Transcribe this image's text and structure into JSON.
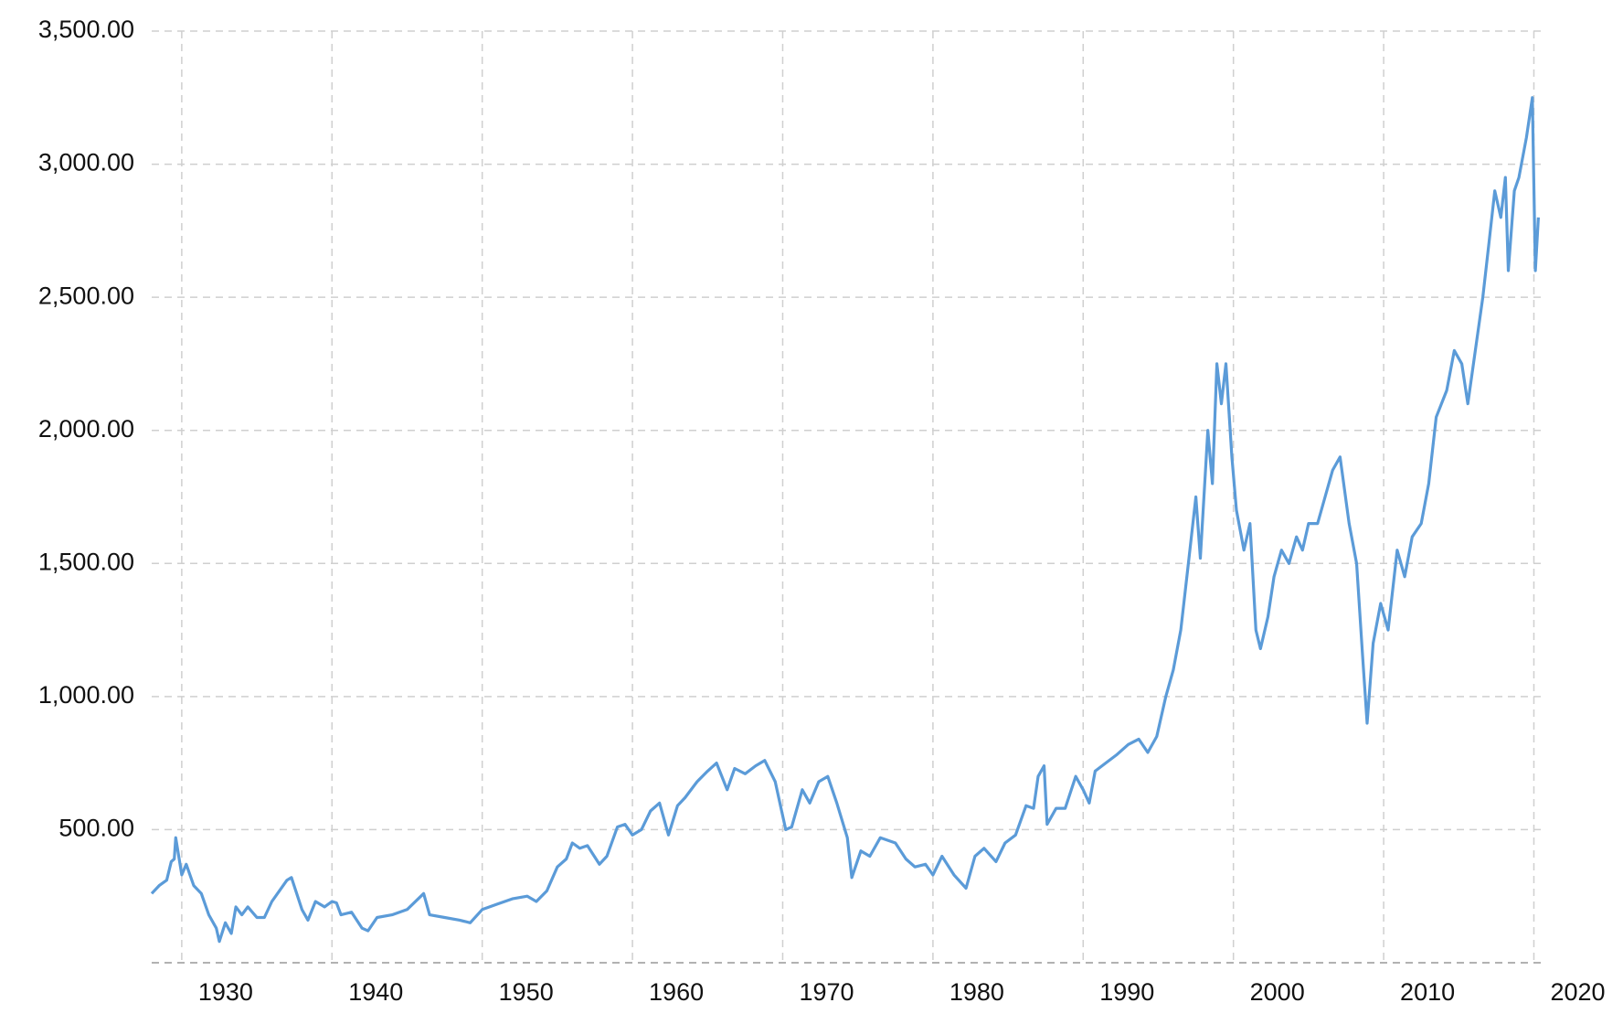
{
  "chart_data": {
    "type": "line",
    "color": "#5b9bd8",
    "grid": true,
    "xlim": [
      1928,
      2020.7
    ],
    "ylim": [
      0,
      3500
    ],
    "xticks": [
      1930,
      1940,
      1950,
      1960,
      1970,
      1980,
      1990,
      2000,
      2010,
      2020
    ],
    "yticks": [
      {
        "value": 500,
        "label": "500.00"
      },
      {
        "value": 1000,
        "label": "1,000.00"
      },
      {
        "value": 1500,
        "label": "1,500.00"
      },
      {
        "value": 2000,
        "label": "2,000.00"
      },
      {
        "value": 2500,
        "label": "2,500.00"
      },
      {
        "value": 3000,
        "label": "3,000.00"
      },
      {
        "value": 3500,
        "label": "3,500.00"
      }
    ],
    "x": [
      1928.0,
      1928.5,
      1929.0,
      1929.3,
      1929.5,
      1929.6,
      1930.0,
      1930.3,
      1930.8,
      1931.3,
      1931.8,
      1932.3,
      1932.5,
      1932.9,
      1933.3,
      1933.6,
      1934.0,
      1934.4,
      1935.0,
      1935.5,
      1936.0,
      1936.5,
      1937.0,
      1937.3,
      1938.0,
      1938.4,
      1938.9,
      1939.5,
      1940.0,
      1940.3,
      1940.6,
      1941.3,
      1942.0,
      1942.4,
      1943.0,
      1944.0,
      1945.0,
      1946.1,
      1946.5,
      1947.5,
      1948.5,
      1949.2,
      1950.0,
      1951.0,
      1952.0,
      1953.0,
      1953.6,
      1954.3,
      1955.0,
      1955.6,
      1956.0,
      1956.5,
      1957.0,
      1957.8,
      1958.3,
      1959.0,
      1959.5,
      1960.0,
      1960.6,
      1961.2,
      1961.8,
      1962.4,
      1963.0,
      1963.5,
      1964.3,
      1965.0,
      1965.6,
      1966.3,
      1966.8,
      1967.5,
      1968.2,
      1968.8,
      1969.5,
      1970.2,
      1970.6,
      1971.3,
      1971.8,
      1972.4,
      1973.0,
      1973.6,
      1974.3,
      1974.6,
      1975.2,
      1975.8,
      1976.5,
      1977.5,
      1978.2,
      1978.8,
      1979.5,
      1980.0,
      1980.6,
      1981.4,
      1982.2,
      1982.8,
      1983.4,
      1984.2,
      1984.8,
      1985.5,
      1986.2,
      1986.7,
      1987.0,
      1987.4,
      1987.6,
      1988.2,
      1988.8,
      1989.5,
      1990.0,
      1990.4,
      1990.8,
      1991.5,
      1992.2,
      1993.0,
      1993.7,
      1994.3,
      1994.9,
      1995.5,
      1996.0,
      1996.5,
      1997.0,
      1997.5,
      1997.8,
      1998.3,
      1998.6,
      1998.9,
      1999.2,
      1999.5,
      1999.9,
      2000.2,
      2000.7,
      2001.1,
      2001.5,
      2001.8,
      2002.3,
      2002.7,
      2003.2,
      2003.7,
      2004.2,
      2004.6,
      2005.0,
      2005.6,
      2006.1,
      2006.6,
      2007.1,
      2007.7,
      2008.2,
      2008.6,
      2008.9,
      2009.3,
      2009.8,
      2010.3,
      2010.9,
      2011.4,
      2011.9,
      2012.5,
      2013.0,
      2013.5,
      2014.2,
      2014.7,
      2015.2,
      2015.6,
      2016.1,
      2016.6,
      2017.0,
      2017.4,
      2017.8,
      2018.1,
      2018.3,
      2018.7,
      2019.0,
      2019.5,
      2019.9,
      2020.1,
      2020.3
    ],
    "values": [
      260,
      290,
      310,
      380,
      390,
      470,
      330,
      370,
      290,
      260,
      180,
      130,
      80,
      150,
      110,
      210,
      180,
      210,
      170,
      170,
      230,
      270,
      310,
      320,
      200,
      160,
      230,
      210,
      230,
      225,
      180,
      190,
      130,
      120,
      170,
      180,
      200,
      260,
      180,
      170,
      160,
      150,
      200,
      220,
      240,
      250,
      230,
      270,
      360,
      390,
      450,
      430,
      440,
      370,
      400,
      510,
      520,
      480,
      500,
      570,
      600,
      480,
      590,
      620,
      680,
      720,
      750,
      650,
      730,
      710,
      740,
      760,
      680,
      500,
      510,
      650,
      600,
      680,
      700,
      600,
      470,
      320,
      420,
      400,
      470,
      450,
      390,
      360,
      370,
      330,
      400,
      330,
      280,
      400,
      430,
      380,
      450,
      480,
      590,
      580,
      700,
      740,
      520,
      580,
      580,
      700,
      650,
      600,
      720,
      750,
      780,
      820,
      840,
      790,
      850,
      1000,
      1100,
      1250,
      1500,
      1750,
      1520,
      2000,
      1800,
      2250,
      2100,
      2250,
      1900,
      1700,
      1550,
      1650,
      1250,
      1180,
      1300,
      1450,
      1550,
      1500,
      1600,
      1550,
      1650,
      1650,
      1750,
      1850,
      1900,
      1650,
      1500,
      1150,
      900,
      1200,
      1350,
      1250,
      1550,
      1450,
      1600,
      1650,
      1800,
      2050,
      2150,
      2300,
      2250,
      2100,
      2300,
      2500,
      2700,
      2900,
      2800,
      2950,
      2600,
      2900,
      2950,
      3100,
      3250,
      2600,
      2800
    ]
  }
}
